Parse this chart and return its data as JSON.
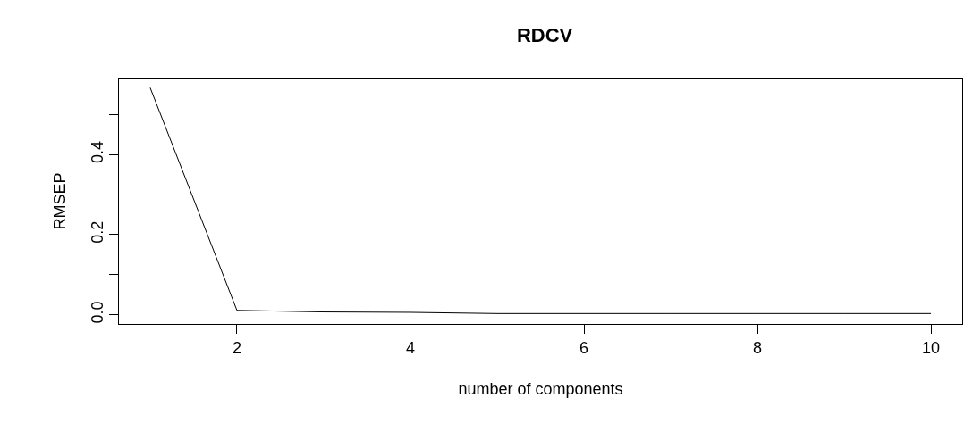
{
  "chart_data": {
    "type": "line",
    "title": "RDCV",
    "xlabel": "number of components",
    "ylabel": "RMSEP",
    "x": [
      1,
      2,
      3,
      4,
      5,
      6,
      7,
      8,
      9,
      10
    ],
    "series": [
      {
        "color": "#000000",
        "values": [
          0.567,
          0.011,
          0.007,
          0.006,
          0.003,
          0.003,
          0.003,
          0.003,
          0.003,
          0.003
        ]
      }
    ],
    "xlim": [
      0.64,
      10.36
    ],
    "xticks": [
      2,
      4,
      6,
      8,
      10
    ],
    "ylim": [
      -0.023,
      0.59
    ],
    "yticks": [
      {
        "value": 0,
        "label": "0.0"
      },
      {
        "value": 0.1,
        "label": null
      },
      0.2,
      {
        "value": 0.3,
        "label": null
      },
      0.4,
      {
        "value": 0.5,
        "label": null
      }
    ],
    "grid": false,
    "marker": "none",
    "line_style": "solid"
  }
}
